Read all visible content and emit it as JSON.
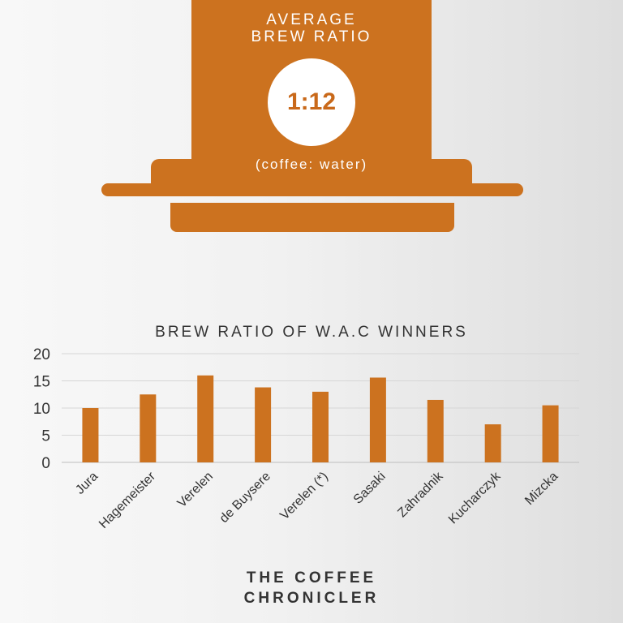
{
  "header": {
    "title_line1": "AVERAGE",
    "title_line2": "BREW RATIO",
    "ratio_value": "1:12",
    "ratio_note": "(coffee: water)"
  },
  "chart_data": {
    "type": "bar",
    "title": "BREW RATIO OF W.A.C WINNERS",
    "categories": [
      "Jura",
      "Hagemeister",
      "Verelen",
      "de Buysere",
      "Verelen (*)",
      "Sasaki",
      "Zahradnik",
      "Kucharczyk",
      "Mizcka"
    ],
    "values": [
      10,
      12.5,
      16,
      13.8,
      13,
      15.6,
      11.5,
      7,
      10.5
    ],
    "yticks": [
      0,
      5,
      10,
      15,
      20
    ],
    "ylim": [
      0,
      20
    ],
    "xlabel": "",
    "ylabel": "",
    "grid": true,
    "bar_color": "#cc721f"
  },
  "footer": {
    "line1": "THE COFFEE",
    "line2": "CHRONICLER"
  },
  "colors": {
    "accent": "#cc721f",
    "ratio_text": "#c9691a"
  }
}
